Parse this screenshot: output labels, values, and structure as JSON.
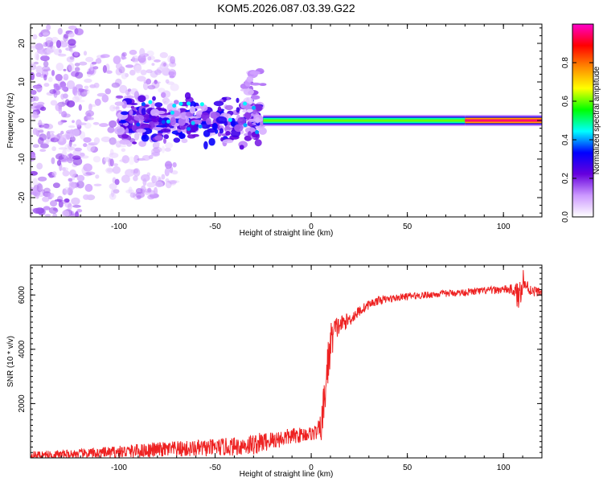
{
  "title": "KOM5.2026.087.03.39.G22",
  "chart_data": [
    {
      "type": "heatmap",
      "xlabel": "Height of straight line (km)",
      "ylabel": "Frequency (Hz)",
      "xlim": [
        -146,
        120
      ],
      "ylim": [
        -25,
        25
      ],
      "xticks": [
        -100,
        -50,
        0,
        50,
        100
      ],
      "yticks": [
        -20,
        -10,
        0,
        10,
        20
      ],
      "xtick_labels": [
        "-100",
        "-50",
        "0",
        "50",
        "100"
      ],
      "ytick_labels": [
        "-20",
        "-10",
        "0",
        "10",
        "20"
      ],
      "colorbar": {
        "label": "Normalized spectral amplitude",
        "range": [
          0.0,
          1.0
        ],
        "ticks": [
          0.0,
          0.2,
          0.4,
          0.6,
          0.8
        ],
        "tick_labels": [
          "0.0",
          "0.2",
          "0.4",
          "0.6",
          "0.8"
        ],
        "colormap": [
          "#ffffff",
          "#cc99ff",
          "#6600dd",
          "#0000ff",
          "#00ffff",
          "#00ff00",
          "#ffff00",
          "#ff8800",
          "#ff0000",
          "#ff00cc"
        ]
      },
      "features": [
        {
          "x_range": [
            -146,
            -120
          ],
          "freq_range": [
            -25,
            25
          ],
          "amplitude": 0.15,
          "pattern": "scattered"
        },
        {
          "x_range": [
            -120,
            -70
          ],
          "freq_range": [
            -20,
            18
          ],
          "amplitude": 0.12,
          "pattern": "scattered"
        },
        {
          "x_range": [
            -100,
            -25
          ],
          "freq_range": [
            -8,
            8
          ],
          "amplitude": 0.2,
          "pattern": "blobs"
        },
        {
          "x_range": [
            -35,
            -25
          ],
          "freq_range": [
            0,
            13
          ],
          "amplitude": 0.15,
          "pattern": "plume"
        },
        {
          "x_range": [
            -25,
            80
          ],
          "freq_range": [
            -1,
            1
          ],
          "amplitude": 0.6,
          "pattern": "band"
        },
        {
          "x_range": [
            80,
            120
          ],
          "freq_range": [
            -1,
            1
          ],
          "amplitude": 0.95,
          "pattern": "band"
        }
      ],
      "grid": false
    },
    {
      "type": "line",
      "xlabel": "Height of straight line (km)",
      "ylabel": "SNR (10 * v/v)",
      "xlim": [
        -146,
        120
      ],
      "ylim": [
        0,
        7100
      ],
      "xticks": [
        -100,
        -50,
        0,
        50,
        100
      ],
      "yticks": [
        2000,
        4000,
        6000
      ],
      "xtick_labels": [
        "-100",
        "-50",
        "0",
        "50",
        "100"
      ],
      "ytick_labels": [
        "2000",
        "4000",
        "6000"
      ],
      "color": "#ee2222",
      "series": [
        {
          "x": [
            -146,
            -130,
            -120,
            -110,
            -100,
            -90,
            -80,
            -70,
            -60,
            -50,
            -40,
            -30,
            -20,
            -10,
            -5,
            0,
            3,
            5,
            6,
            8,
            10,
            12,
            15,
            20,
            25,
            30,
            35,
            40,
            50,
            60,
            70,
            80,
            90,
            100,
            105,
            108,
            110,
            112,
            115,
            120
          ],
          "values": [
            100,
            120,
            150,
            180,
            220,
            260,
            300,
            320,
            340,
            380,
            420,
            500,
            650,
            800,
            850,
            900,
            950,
            1100,
            1500,
            3000,
            4200,
            4700,
            4900,
            5100,
            5400,
            5650,
            5800,
            5850,
            5950,
            6000,
            6050,
            6100,
            6150,
            6200,
            6200,
            5900,
            6600,
            6300,
            6150,
            6100
          ],
          "noise": [
            150,
            160,
            180,
            200,
            230,
            260,
            280,
            300,
            310,
            320,
            340,
            400,
            350,
            300,
            280,
            260,
            300,
            500,
            900,
            900,
            800,
            500,
            350,
            250,
            200,
            170,
            150,
            140,
            130,
            130,
            130,
            130,
            140,
            150,
            200,
            600,
            500,
            300,
            200,
            150
          ]
        }
      ],
      "grid": false
    }
  ]
}
